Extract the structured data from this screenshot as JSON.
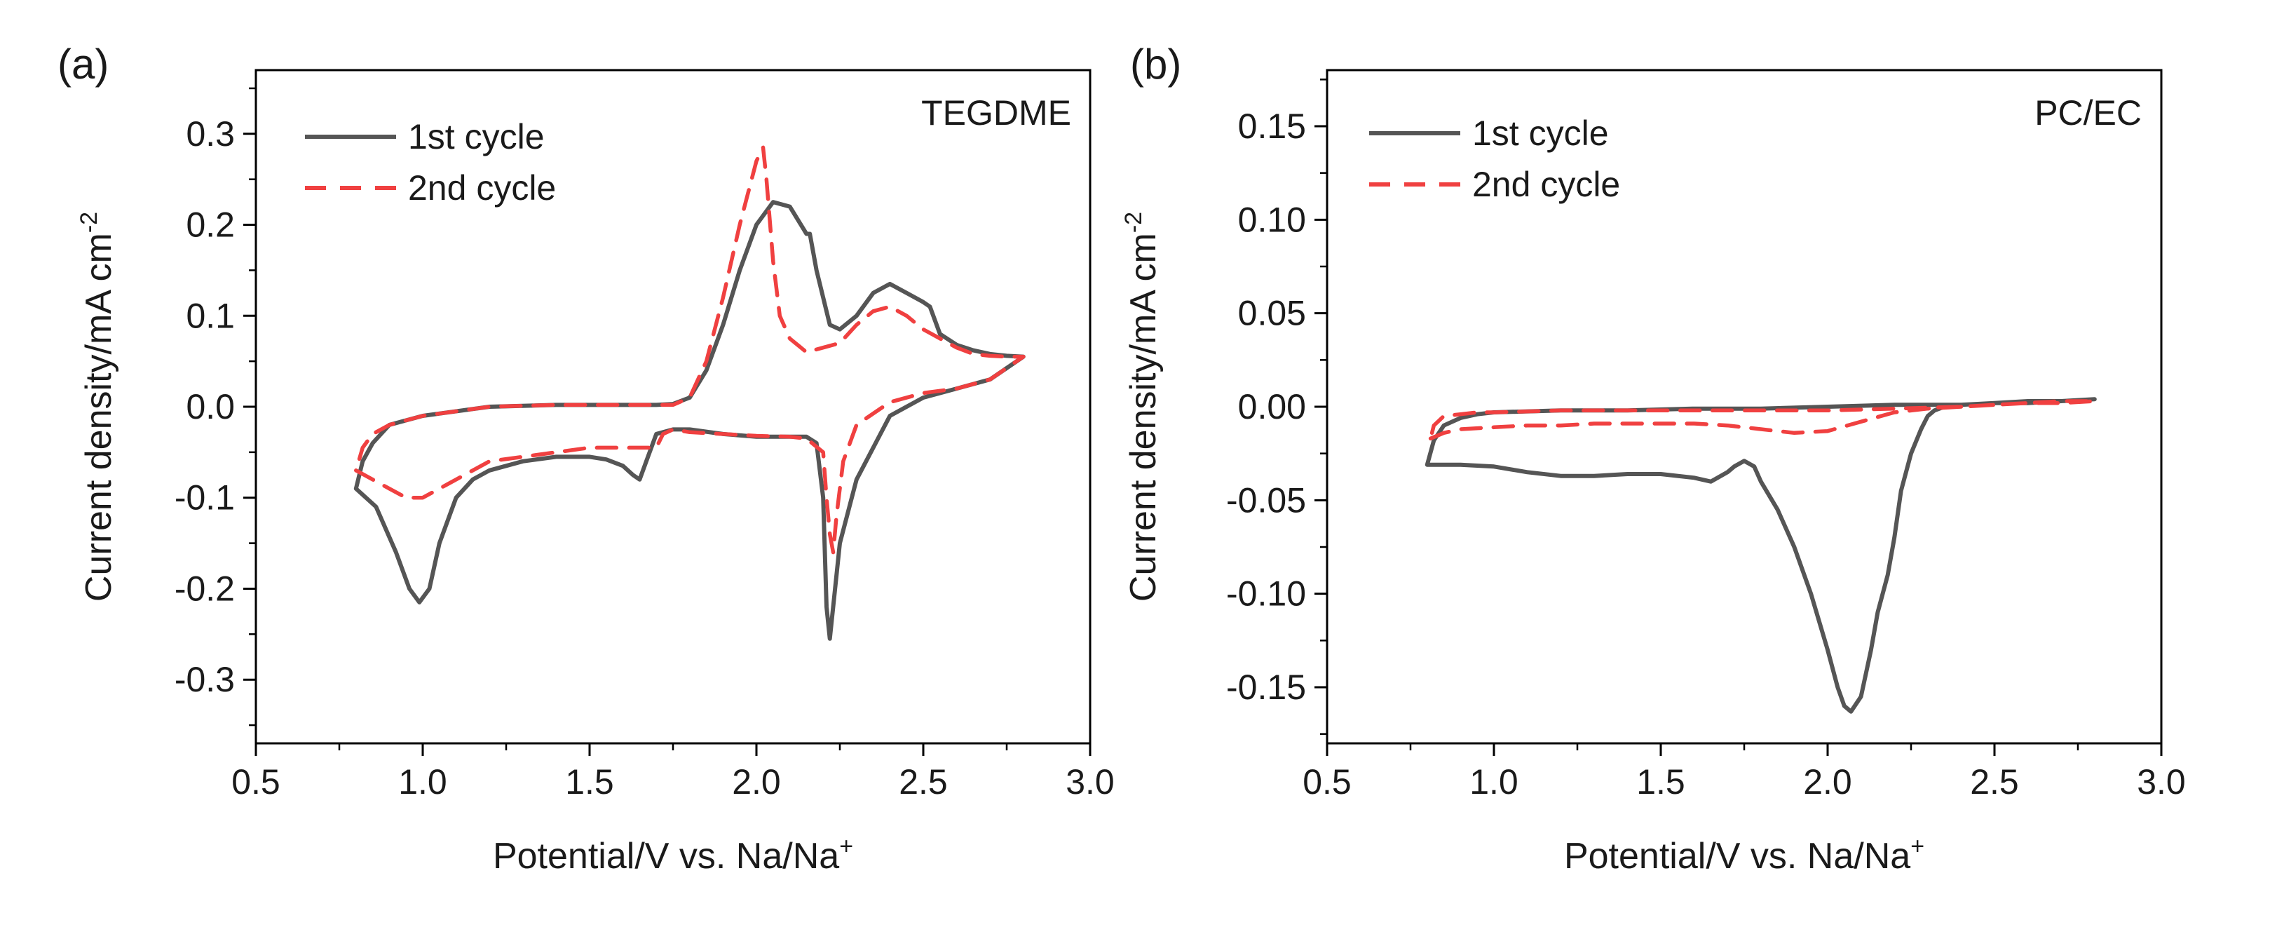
{
  "chart_data": [
    {
      "type": "line",
      "panel_label": "(a)",
      "annotation": "TEGDME",
      "xlabel": "Potential/V vs. Na/Na",
      "xlabel_sup": "+",
      "ylabel": "Current density/mA cm",
      "ylabel_sup": "-2",
      "xlim": [
        0.5,
        3.0
      ],
      "ylim": [
        -0.37,
        0.37
      ],
      "x_ticks": [
        0.5,
        1.0,
        1.5,
        2.0,
        2.5,
        3.0
      ],
      "x_tick_labels": [
        "0.5",
        "1.0",
        "1.5",
        "2.0",
        "2.5",
        "3.0"
      ],
      "y_ticks": [
        -0.3,
        -0.2,
        -0.1,
        0.0,
        0.1,
        0.2,
        0.3
      ],
      "y_tick_labels": [
        "-0.3",
        "-0.2",
        "-0.1",
        "0.0",
        "0.1",
        "0.2",
        "0.3"
      ],
      "legend_position": "top-left",
      "series": [
        {
          "name": "1st cycle",
          "color": "#555555",
          "dash": "solid",
          "x": [
            0.8,
            0.86,
            0.92,
            0.96,
            0.99,
            1.02,
            1.05,
            1.1,
            1.15,
            1.2,
            1.3,
            1.4,
            1.5,
            1.55,
            1.6,
            1.63,
            1.65,
            1.67,
            1.7,
            1.75,
            1.8,
            1.9,
            2.0,
            2.1,
            2.15,
            2.18,
            2.2,
            2.21,
            2.22,
            2.25,
            2.3,
            2.4,
            2.5,
            2.6,
            2.7,
            2.78,
            2.8,
            2.75,
            2.7,
            2.65,
            2.6,
            2.55,
            2.52,
            2.5,
            2.45,
            2.4,
            2.35,
            2.3,
            2.25,
            2.22,
            2.2,
            2.18,
            2.16,
            2.15,
            2.1,
            2.05,
            2.0,
            1.95,
            1.9,
            1.85,
            1.8,
            1.75,
            1.7,
            1.6,
            1.5,
            1.4,
            1.2,
            1.0,
            0.9,
            0.85,
            0.82,
            0.8
          ],
          "y": [
            -0.09,
            -0.11,
            -0.16,
            -0.2,
            -0.215,
            -0.2,
            -0.15,
            -0.1,
            -0.08,
            -0.07,
            -0.06,
            -0.055,
            -0.055,
            -0.058,
            -0.065,
            -0.075,
            -0.08,
            -0.06,
            -0.03,
            -0.025,
            -0.025,
            -0.03,
            -0.033,
            -0.033,
            -0.033,
            -0.04,
            -0.1,
            -0.22,
            -0.255,
            -0.15,
            -0.08,
            -0.01,
            0.01,
            0.02,
            0.03,
            0.05,
            0.055,
            0.056,
            0.058,
            0.062,
            0.068,
            0.08,
            0.11,
            0.115,
            0.125,
            0.135,
            0.125,
            0.1,
            0.085,
            0.09,
            0.12,
            0.15,
            0.19,
            0.19,
            0.22,
            0.225,
            0.2,
            0.15,
            0.09,
            0.04,
            0.01,
            0.003,
            0.002,
            0.002,
            0.002,
            0.002,
            0.0,
            -0.01,
            -0.02,
            -0.04,
            -0.06,
            -0.09
          ]
        },
        {
          "name": "2nd cycle",
          "color": "#f04040",
          "dash": "dashed",
          "x": [
            0.8,
            0.85,
            0.9,
            0.95,
            1.0,
            1.05,
            1.1,
            1.15,
            1.2,
            1.3,
            1.4,
            1.5,
            1.6,
            1.7,
            1.72,
            1.75,
            1.8,
            1.9,
            2.0,
            2.1,
            2.15,
            2.2,
            2.21,
            2.22,
            2.23,
            2.24,
            2.26,
            2.3,
            2.4,
            2.5,
            2.6,
            2.7,
            2.8,
            2.75,
            2.7,
            2.65,
            2.6,
            2.55,
            2.5,
            2.45,
            2.4,
            2.35,
            2.3,
            2.25,
            2.2,
            2.15,
            2.1,
            2.07,
            2.05,
            2.03,
            2.02,
            2.0,
            1.95,
            1.9,
            1.85,
            1.8,
            1.75,
            1.7,
            1.6,
            1.5,
            1.4,
            1.3,
            1.2,
            1.1,
            1.0,
            0.9,
            0.85,
            0.82,
            0.8
          ],
          "y": [
            -0.07,
            -0.08,
            -0.09,
            -0.1,
            -0.1,
            -0.09,
            -0.08,
            -0.07,
            -0.06,
            -0.055,
            -0.05,
            -0.045,
            -0.045,
            -0.045,
            -0.03,
            -0.025,
            -0.028,
            -0.03,
            -0.032,
            -0.033,
            -0.035,
            -0.05,
            -0.1,
            -0.14,
            -0.16,
            -0.12,
            -0.06,
            -0.02,
            0.005,
            0.015,
            0.02,
            0.03,
            0.055,
            0.055,
            0.056,
            0.058,
            0.065,
            0.075,
            0.085,
            0.1,
            0.11,
            0.105,
            0.09,
            0.07,
            0.065,
            0.06,
            0.075,
            0.1,
            0.16,
            0.25,
            0.285,
            0.27,
            0.2,
            0.12,
            0.05,
            0.01,
            0.002,
            0.002,
            0.002,
            0.002,
            0.002,
            0.001,
            0.0,
            -0.005,
            -0.01,
            -0.02,
            -0.03,
            -0.045,
            -0.07
          ]
        }
      ]
    },
    {
      "type": "line",
      "panel_label": "(b)",
      "annotation": "PC/EC",
      "xlabel": "Potential/V vs. Na/Na",
      "xlabel_sup": "+",
      "ylabel": "Current density/mA cm",
      "ylabel_sup": "-2",
      "xlim": [
        0.5,
        3.0
      ],
      "ylim": [
        -0.18,
        0.18
      ],
      "x_ticks": [
        0.5,
        1.0,
        1.5,
        2.0,
        2.5,
        3.0
      ],
      "x_tick_labels": [
        "0.5",
        "1.0",
        "1.5",
        "2.0",
        "2.5",
        "3.0"
      ],
      "y_ticks": [
        -0.15,
        -0.1,
        -0.05,
        0.0,
        0.05,
        0.1,
        0.15
      ],
      "y_tick_labels": [
        "-0.15",
        "-0.10",
        "-0.05",
        "0.00",
        "0.05",
        "0.10",
        "0.15"
      ],
      "legend_position": "top-left",
      "series": [
        {
          "name": "1st cycle",
          "color": "#555555",
          "dash": "solid",
          "x": [
            0.8,
            0.9,
            1.0,
            1.1,
            1.2,
            1.3,
            1.4,
            1.5,
            1.6,
            1.65,
            1.7,
            1.72,
            1.75,
            1.78,
            1.8,
            1.85,
            1.9,
            1.95,
            2.0,
            2.03,
            2.05,
            2.07,
            2.1,
            2.13,
            2.15,
            2.18,
            2.2,
            2.22,
            2.25,
            2.28,
            2.3,
            2.32,
            2.35,
            2.4,
            2.5,
            2.6,
            2.7,
            2.8,
            2.7,
            2.6,
            2.5,
            2.4,
            2.2,
            2.0,
            1.8,
            1.6,
            1.4,
            1.2,
            1.0,
            0.95,
            0.9,
            0.85,
            0.82,
            0.8
          ],
          "y": [
            -0.031,
            -0.031,
            -0.032,
            -0.035,
            -0.037,
            -0.037,
            -0.036,
            -0.036,
            -0.038,
            -0.04,
            -0.035,
            -0.032,
            -0.029,
            -0.032,
            -0.04,
            -0.055,
            -0.075,
            -0.1,
            -0.13,
            -0.15,
            -0.16,
            -0.163,
            -0.155,
            -0.13,
            -0.11,
            -0.09,
            -0.07,
            -0.045,
            -0.025,
            -0.012,
            -0.005,
            -0.002,
            0.0,
            0.001,
            0.002,
            0.003,
            0.003,
            0.004,
            0.003,
            0.002,
            0.002,
            0.001,
            0.001,
            0.0,
            -0.001,
            -0.001,
            -0.002,
            -0.002,
            -0.003,
            -0.004,
            -0.006,
            -0.01,
            -0.018,
            -0.031
          ]
        },
        {
          "name": "2nd cycle",
          "color": "#f04040",
          "dash": "dashed",
          "x": [
            0.81,
            0.85,
            0.9,
            1.0,
            1.1,
            1.2,
            1.3,
            1.4,
            1.5,
            1.6,
            1.7,
            1.8,
            1.9,
            2.0,
            2.1,
            2.2,
            2.3,
            2.4,
            2.5,
            2.6,
            2.7,
            2.8,
            2.7,
            2.6,
            2.5,
            2.4,
            2.2,
            2.0,
            1.8,
            1.6,
            1.4,
            1.2,
            1.0,
            0.95,
            0.9,
            0.85,
            0.82,
            0.81
          ],
          "y": [
            -0.017,
            -0.014,
            -0.012,
            -0.011,
            -0.01,
            -0.01,
            -0.009,
            -0.009,
            -0.009,
            -0.009,
            -0.01,
            -0.012,
            -0.014,
            -0.013,
            -0.008,
            -0.003,
            -0.001,
            0.0,
            0.001,
            0.002,
            0.002,
            0.003,
            0.003,
            0.002,
            0.001,
            0.0,
            -0.001,
            -0.002,
            -0.002,
            -0.002,
            -0.002,
            -0.002,
            -0.003,
            -0.003,
            -0.004,
            -0.005,
            -0.01,
            -0.017
          ]
        }
      ]
    }
  ]
}
